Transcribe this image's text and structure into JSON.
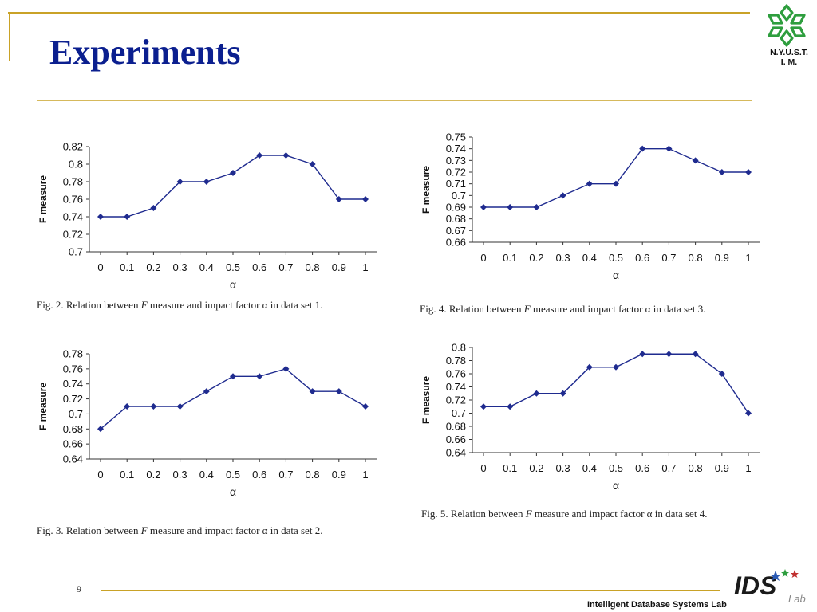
{
  "slide": {
    "title": "Experiments",
    "logo_text_line1": "N.Y.U.S.T.",
    "logo_text_line2": "I. M.",
    "page_number": "9",
    "footer_lab": "Intelligent Database Systems Lab",
    "footer_logo_text": "IDS",
    "footer_logo_sub": "Lab"
  },
  "colors": {
    "title": "#0b1f8f",
    "gold_rule": "#c9a227",
    "series": "#1f2b8f",
    "logo_green": "#2e9e3e"
  },
  "chart_data": [
    {
      "type": "line",
      "caption_prefix": "Fig. 2.  Relation between ",
      "caption_italic": "F",
      "caption_suffix": " measure and impact factor α in data set 1.",
      "xlabel": "α",
      "ylabel": "F measure",
      "x": [
        0,
        0.1,
        0.2,
        0.3,
        0.4,
        0.5,
        0.6,
        0.7,
        0.8,
        0.9,
        1
      ],
      "x_tick_labels": [
        "0",
        "0.1",
        "0.2",
        "0.3",
        "0.4",
        "0.5",
        "0.6",
        "0.7",
        "0.8",
        "0.9",
        "1"
      ],
      "y": [
        0.74,
        0.74,
        0.75,
        0.78,
        0.78,
        0.79,
        0.81,
        0.81,
        0.8,
        0.76,
        0.76
      ],
      "ylim": [
        0.7,
        0.82
      ],
      "y_ticks": [
        0.7,
        0.72,
        0.74,
        0.76,
        0.78,
        0.8,
        0.82
      ],
      "y_tick_labels": [
        "0.7",
        "0.72",
        "0.74",
        "0.76",
        "0.78",
        "0.8",
        "0.82"
      ],
      "grid": false
    },
    {
      "type": "line",
      "caption_prefix": "Fig. 4.  Relation between ",
      "caption_italic": "F",
      "caption_suffix": " measure and impact factor α in data set 3.",
      "xlabel": "α",
      "ylabel": "F measure",
      "x": [
        0,
        0.1,
        0.2,
        0.3,
        0.4,
        0.5,
        0.6,
        0.7,
        0.8,
        0.9,
        1
      ],
      "x_tick_labels": [
        "0",
        "0.1",
        "0.2",
        "0.3",
        "0.4",
        "0.5",
        "0.6",
        "0.7",
        "0.8",
        "0.9",
        "1"
      ],
      "y": [
        0.69,
        0.69,
        0.69,
        0.7,
        0.71,
        0.71,
        0.74,
        0.74,
        0.73,
        0.72,
        0.72
      ],
      "ylim": [
        0.66,
        0.75
      ],
      "y_ticks": [
        0.66,
        0.67,
        0.68,
        0.69,
        0.7,
        0.71,
        0.72,
        0.73,
        0.74,
        0.75
      ],
      "y_tick_labels": [
        "0.66",
        "0.67",
        "0.68",
        "0.69",
        "0.7",
        "0.71",
        "0.72",
        "0.73",
        "0.74",
        "0.75"
      ],
      "grid": false
    },
    {
      "type": "line",
      "caption_prefix": "Fig. 3.  Relation between ",
      "caption_italic": "F",
      "caption_suffix": " measure and impact factor α in data set 2.",
      "xlabel": "α",
      "ylabel": "F measure",
      "x": [
        0,
        0.1,
        0.2,
        0.3,
        0.4,
        0.5,
        0.6,
        0.7,
        0.8,
        0.9,
        1
      ],
      "x_tick_labels": [
        "0",
        "0.1",
        "0.2",
        "0.3",
        "0.4",
        "0.5",
        "0.6",
        "0.7",
        "0.8",
        "0.9",
        "1"
      ],
      "y": [
        0.68,
        0.71,
        0.71,
        0.71,
        0.73,
        0.75,
        0.75,
        0.76,
        0.73,
        0.73,
        0.71
      ],
      "ylim": [
        0.64,
        0.78
      ],
      "y_ticks": [
        0.64,
        0.66,
        0.68,
        0.7,
        0.72,
        0.74,
        0.76,
        0.78
      ],
      "y_tick_labels": [
        "0.64",
        "0.66",
        "0.68",
        "0.7",
        "0.72",
        "0.74",
        "0.76",
        "0.78"
      ],
      "grid": false
    },
    {
      "type": "line",
      "caption_prefix": "Fig. 5.  Relation between ",
      "caption_italic": "F",
      "caption_suffix": " measure and impact factor α in data set 4.",
      "xlabel": "α",
      "ylabel": "F measure",
      "x": [
        0,
        0.1,
        0.2,
        0.3,
        0.4,
        0.5,
        0.6,
        0.7,
        0.8,
        0.9,
        1
      ],
      "x_tick_labels": [
        "0",
        "0.1",
        "0.2",
        "0.3",
        "0.4",
        "0.5",
        "0.6",
        "0.7",
        "0.8",
        "0.9",
        "1"
      ],
      "y": [
        0.71,
        0.71,
        0.73,
        0.73,
        0.77,
        0.77,
        0.79,
        0.79,
        0.79,
        0.76,
        0.7
      ],
      "ylim": [
        0.64,
        0.8
      ],
      "y_ticks": [
        0.64,
        0.66,
        0.68,
        0.7,
        0.72,
        0.74,
        0.76,
        0.78,
        0.8
      ],
      "y_tick_labels": [
        "0.64",
        "0.66",
        "0.68",
        "0.7",
        "0.72",
        "0.74",
        "0.76",
        "0.78",
        "0.8"
      ],
      "grid": false
    }
  ]
}
